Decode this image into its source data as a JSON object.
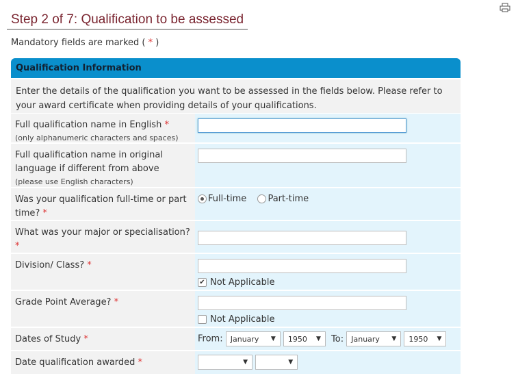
{
  "title": "Step 2 of 7: Qualification to be assessed",
  "mandatory_prefix": "Mandatory fields are marked (",
  "mandatory_suffix": ")",
  "required_mark": "*",
  "section_title": "Qualification Information",
  "intro": "Enter the details of the qualification you want to be assessed in the fields below. Please refer to your award certificate when providing details of your qualifications.",
  "fields": {
    "name_en": {
      "label": "Full qualification name in English",
      "hint": "(only alphanumeric characters and spaces)",
      "value": ""
    },
    "name_orig": {
      "label": "Full qualification name in original language if different from above",
      "hint": "(please use English characters)",
      "value": ""
    },
    "mode": {
      "label": "Was your qualification full-time or part time?",
      "options": [
        "Full-time",
        "Part-time"
      ],
      "selected": "Full-time"
    },
    "major": {
      "label": "What was your major or specialisation?",
      "value": ""
    },
    "division": {
      "label": "Division/ Class?",
      "value": "",
      "na_label": "Not Applicable",
      "na_checked": true
    },
    "gpa": {
      "label": "Grade Point Average?",
      "value": "",
      "na_label": "Not Applicable",
      "na_checked": false
    },
    "dates": {
      "label": "Dates of Study",
      "from_label": "From:",
      "to_label": "To:",
      "from_month": "January",
      "from_year": "1950",
      "to_month": "January",
      "to_year": "1950"
    },
    "awarded": {
      "label": "Date qualification awarded",
      "month": "",
      "year": ""
    }
  }
}
